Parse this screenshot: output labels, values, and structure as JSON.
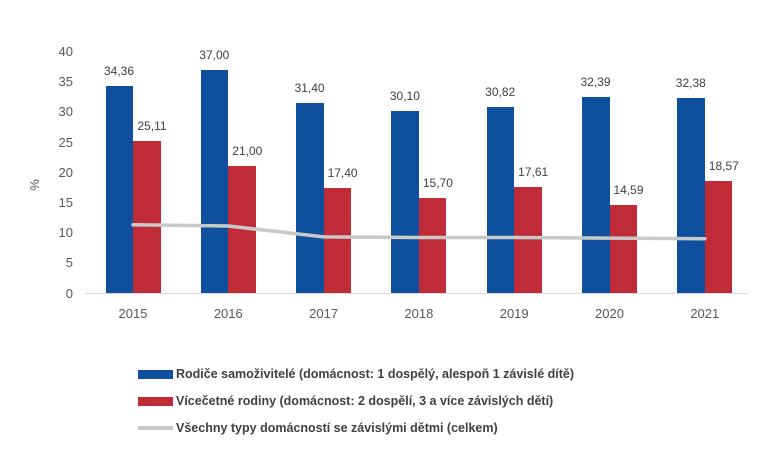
{
  "chart_data": {
    "type": "bar",
    "title": "",
    "categories": [
      "2015",
      "2016",
      "2017",
      "2018",
      "2019",
      "2020",
      "2021"
    ],
    "series": [
      {
        "name": "Rodiče samoživitelé (domácnost: 1 dospělý, alespoň 1 závislé dítě)",
        "type": "bar",
        "color": "#0E4F9E",
        "values": [
          34.36,
          37.0,
          31.4,
          30.1,
          30.82,
          32.39,
          32.38
        ],
        "labels": [
          "34,36",
          "37,00",
          "31,40",
          "30,10",
          "30,82",
          "32,39",
          "32,38"
        ]
      },
      {
        "name": "Vícečetné rodiny (domácnost: 2 dospělí, 3 a více závislých dětí)",
        "type": "bar",
        "color": "#BF2C37",
        "values": [
          25.11,
          21.0,
          17.4,
          15.7,
          17.61,
          14.59,
          18.57
        ],
        "labels": [
          "25,11",
          "21,00",
          "17,40",
          "15,70",
          "17,61",
          "14,59",
          "18,57"
        ]
      },
      {
        "name": "Všechny typy domácností se závislými dětmi (celkem)",
        "type": "line",
        "color": "#C9C9C9",
        "values": [
          11.3,
          11.1,
          9.3,
          9.2,
          9.2,
          9.1,
          9.0
        ]
      }
    ],
    "xlabel": "",
    "ylabel": "%",
    "ylim": [
      0,
      40
    ],
    "yticks": [
      0,
      5,
      10,
      15,
      20,
      25,
      30,
      35,
      40
    ],
    "grid": false,
    "legend_position": "bottom",
    "axis_text_color": "#595959",
    "axis_line_color": "#D9D9D9",
    "data_label_color": "#404040",
    "legend_text_color": "#404040"
  }
}
